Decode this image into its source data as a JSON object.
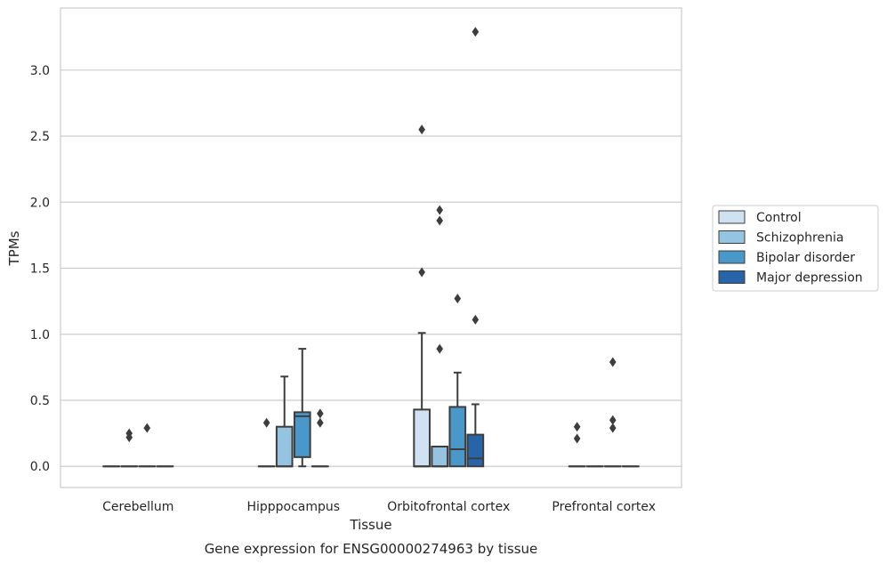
{
  "chart_data": {
    "type": "box",
    "xlabel": "Tissue",
    "ylabel": "TPMs",
    "caption": "Gene expression for ENSG00000274963 by tissue",
    "ylim": [
      -0.16,
      3.47
    ],
    "yticks": [
      "0.0",
      "0.5",
      "1.0",
      "1.5",
      "2.0",
      "2.5",
      "3.0"
    ],
    "grid": "horizontal",
    "legend_position": "right",
    "categories": [
      "Cerebellum",
      "Hipppocampus",
      "Orbitofrontal cortex",
      "Prefrontal cortex"
    ],
    "series": [
      {
        "name": "Control",
        "color": "#d0e1f2",
        "boxes": [
          {
            "q1": 0,
            "median": 0,
            "q3": 0,
            "whisker_low": 0,
            "whisker_high": 0,
            "outliers": []
          },
          {
            "q1": 0,
            "median": 0,
            "q3": 0,
            "whisker_low": 0,
            "whisker_high": 0,
            "outliers": [
              0.33
            ]
          },
          {
            "q1": 0,
            "median": 0.0,
            "q3": 0.43,
            "whisker_low": 0,
            "whisker_high": 1.01,
            "outliers": [
              1.47,
              2.55
            ]
          },
          {
            "q1": 0,
            "median": 0,
            "q3": 0,
            "whisker_low": 0,
            "whisker_high": 0,
            "outliers": [
              0.21,
              0.3
            ]
          }
        ]
      },
      {
        "name": "Schizophrenia",
        "color": "#94c4df",
        "boxes": [
          {
            "q1": 0,
            "median": 0,
            "q3": 0,
            "whisker_low": 0,
            "whisker_high": 0,
            "outliers": [
              0.22,
              0.25
            ]
          },
          {
            "q1": 0,
            "median": 0.0,
            "q3": 0.3,
            "whisker_low": 0,
            "whisker_high": 0.68,
            "outliers": []
          },
          {
            "q1": 0,
            "median": 0.0,
            "q3": 0.15,
            "whisker_low": 0,
            "whisker_high": 0.15,
            "outliers": [
              0.89,
              1.86,
              1.94
            ]
          },
          {
            "q1": 0,
            "median": 0,
            "q3": 0,
            "whisker_low": 0,
            "whisker_high": 0,
            "outliers": []
          }
        ]
      },
      {
        "name": "Bipolar disorder",
        "color": "#4a98c9",
        "boxes": [
          {
            "q1": 0,
            "median": 0,
            "q3": 0,
            "whisker_low": 0,
            "whisker_high": 0,
            "outliers": [
              0.29
            ]
          },
          {
            "q1": 0.07,
            "median": 0.38,
            "q3": 0.41,
            "whisker_low": 0,
            "whisker_high": 0.89,
            "outliers": []
          },
          {
            "q1": 0,
            "median": 0.13,
            "q3": 0.45,
            "whisker_low": 0,
            "whisker_high": 0.71,
            "outliers": [
              1.27
            ]
          },
          {
            "q1": 0,
            "median": 0,
            "q3": 0,
            "whisker_low": 0,
            "whisker_high": 0,
            "outliers": [
              0.29,
              0.35,
              0.79
            ]
          }
        ]
      },
      {
        "name": "Major depression",
        "color": "#2865a8",
        "boxes": [
          {
            "q1": 0,
            "median": 0,
            "q3": 0,
            "whisker_low": 0,
            "whisker_high": 0,
            "outliers": []
          },
          {
            "q1": 0,
            "median": 0,
            "q3": 0,
            "whisker_low": 0,
            "whisker_high": 0,
            "outliers": [
              0.33,
              0.4
            ]
          },
          {
            "q1": 0,
            "median": 0.06,
            "q3": 0.24,
            "whisker_low": 0,
            "whisker_high": 0.47,
            "outliers": [
              1.11,
              3.29
            ]
          },
          {
            "q1": 0,
            "median": 0,
            "q3": 0,
            "whisker_low": 0,
            "whisker_high": 0,
            "outliers": []
          }
        ]
      }
    ]
  }
}
